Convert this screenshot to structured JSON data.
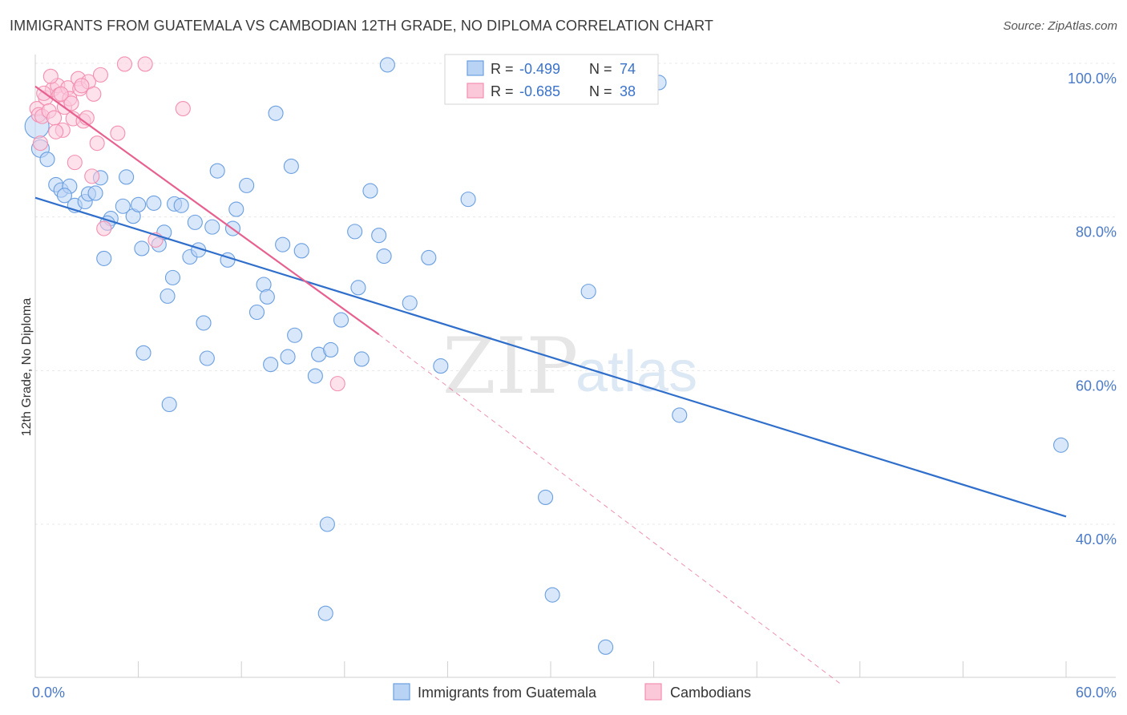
{
  "title": "IMMIGRANTS FROM GUATEMALA VS CAMBODIAN 12TH GRADE, NO DIPLOMA CORRELATION CHART",
  "source": "Source: ZipAtlas.com",
  "watermark": {
    "zip": "ZIP",
    "atlas": "atlas"
  },
  "chart_data": {
    "type": "scatter",
    "title": "IMMIGRANTS FROM GUATEMALA VS CAMBODIAN 12TH GRADE, NO DIPLOMA CORRELATION CHART",
    "xlabel": "",
    "ylabel": "12th Grade, No Diploma",
    "xlim": [
      0,
      60
    ],
    "ylim": [
      20,
      102
    ],
    "x_tick_labels": [
      {
        "value": 0,
        "label": "0.0%"
      },
      {
        "value": 60,
        "label": "60.0%"
      }
    ],
    "y_tick_labels": [
      {
        "value": 100,
        "label": "100.0%"
      },
      {
        "value": 80,
        "label": "80.0%"
      },
      {
        "value": 60,
        "label": "60.0%"
      },
      {
        "value": 40,
        "label": "40.0%"
      }
    ],
    "grid": true,
    "legend_position": "bottom-center",
    "colors": {
      "guatemala": "#6a9fe0",
      "cambodian": "#f48fb1",
      "guatemala_line": "#2f6fcb",
      "cambodian_line": "#e8608f"
    },
    "stats": [
      {
        "series": "guatemala",
        "r_label": "R =",
        "r_value": "-0.499",
        "n_label": "N =",
        "n_value": "74"
      },
      {
        "series": "cambodian",
        "r_label": "R =",
        "r_value": "-0.685",
        "n_label": "N =",
        "n_value": "38"
      }
    ],
    "series": [
      {
        "name": "Immigrants from Guatemala",
        "key": "guatemala",
        "trend": {
          "x": [
            0,
            60
          ],
          "y": [
            82.5,
            41.0
          ],
          "dashed_to": null
        },
        "points": [
          [
            0.1,
            91.8
          ],
          [
            0.3,
            88.9
          ],
          [
            0.7,
            87.5
          ],
          [
            1.2,
            84.2
          ],
          [
            1.5,
            83.5
          ],
          [
            2.0,
            84.0
          ],
          [
            1.7,
            82.8
          ],
          [
            2.3,
            81.5
          ],
          [
            2.9,
            82.0
          ],
          [
            3.1,
            83.0
          ],
          [
            3.8,
            85.1
          ],
          [
            3.5,
            83.1
          ],
          [
            4.4,
            79.8
          ],
          [
            4.2,
            79.2
          ],
          [
            4.0,
            74.6
          ],
          [
            5.1,
            81.4
          ],
          [
            5.7,
            80.1
          ],
          [
            5.3,
            85.2
          ],
          [
            6.0,
            81.6
          ],
          [
            6.2,
            75.9
          ],
          [
            6.9,
            81.8
          ],
          [
            7.2,
            76.4
          ],
          [
            7.5,
            78.0
          ],
          [
            7.7,
            69.7
          ],
          [
            8.0,
            72.1
          ],
          [
            8.1,
            81.7
          ],
          [
            8.5,
            81.5
          ],
          [
            9.0,
            74.8
          ],
          [
            9.3,
            79.3
          ],
          [
            9.5,
            75.7
          ],
          [
            9.8,
            66.2
          ],
          [
            10.0,
            61.6
          ],
          [
            10.3,
            78.7
          ],
          [
            10.6,
            86.0
          ],
          [
            11.2,
            74.4
          ],
          [
            11.5,
            78.5
          ],
          [
            11.7,
            81.0
          ],
          [
            12.3,
            84.1
          ],
          [
            12.9,
            67.6
          ],
          [
            13.3,
            71.2
          ],
          [
            13.5,
            69.6
          ],
          [
            13.7,
            60.8
          ],
          [
            14.0,
            93.5
          ],
          [
            14.4,
            76.4
          ],
          [
            14.9,
            86.6
          ],
          [
            15.1,
            64.6
          ],
          [
            15.5,
            75.6
          ],
          [
            14.7,
            61.8
          ],
          [
            16.3,
            59.3
          ],
          [
            16.5,
            62.1
          ],
          [
            17.2,
            62.7
          ],
          [
            17.8,
            66.6
          ],
          [
            18.6,
            78.1
          ],
          [
            18.8,
            70.8
          ],
          [
            19.0,
            61.5
          ],
          [
            19.5,
            83.4
          ],
          [
            20.0,
            77.6
          ],
          [
            20.3,
            74.9
          ],
          [
            20.5,
            99.8
          ],
          [
            21.8,
            68.8
          ],
          [
            22.9,
            74.7
          ],
          [
            23.6,
            60.6
          ],
          [
            25.2,
            82.3
          ],
          [
            29.7,
            43.5
          ],
          [
            30.1,
            30.8
          ],
          [
            32.2,
            70.3
          ],
          [
            33.2,
            24.0
          ],
          [
            36.3,
            97.5
          ],
          [
            37.5,
            54.2
          ],
          [
            59.7,
            50.3
          ],
          [
            17.0,
            40.0
          ],
          [
            16.9,
            28.4
          ],
          [
            7.8,
            55.6
          ],
          [
            6.3,
            62.3
          ]
        ]
      },
      {
        "name": "Cambodians",
        "key": "cambodian",
        "trend": {
          "x": [
            0,
            20.0
          ],
          "y": [
            97.0,
            64.7
          ],
          "dashed_to": [
            47.0,
            19.0
          ]
        },
        "points": [
          [
            0.1,
            94.1
          ],
          [
            0.2,
            93.3
          ],
          [
            0.3,
            89.6
          ],
          [
            0.4,
            93.1
          ],
          [
            0.6,
            95.5
          ],
          [
            0.8,
            93.8
          ],
          [
            1.0,
            96.6
          ],
          [
            1.1,
            92.9
          ],
          [
            1.3,
            97.1
          ],
          [
            1.4,
            95.9
          ],
          [
            1.6,
            91.3
          ],
          [
            1.7,
            94.3
          ],
          [
            1.9,
            96.8
          ],
          [
            2.0,
            95.4
          ],
          [
            2.2,
            92.8
          ],
          [
            2.3,
            87.1
          ],
          [
            2.5,
            98.0
          ],
          [
            2.6,
            96.7
          ],
          [
            2.8,
            92.5
          ],
          [
            3.0,
            92.9
          ],
          [
            3.1,
            97.6
          ],
          [
            3.3,
            85.3
          ],
          [
            3.6,
            89.6
          ],
          [
            3.8,
            98.5
          ],
          [
            4.0,
            78.5
          ],
          [
            4.8,
            90.9
          ],
          [
            5.2,
            99.9
          ],
          [
            6.4,
            99.9
          ],
          [
            7.0,
            77.0
          ],
          [
            8.6,
            94.1
          ],
          [
            17.6,
            58.3
          ],
          [
            2.1,
            94.8
          ],
          [
            0.5,
            96.1
          ],
          [
            1.2,
            91.1
          ],
          [
            2.7,
            97.1
          ],
          [
            0.9,
            98.3
          ],
          [
            1.5,
            96.0
          ],
          [
            3.4,
            96.0
          ]
        ]
      }
    ]
  }
}
